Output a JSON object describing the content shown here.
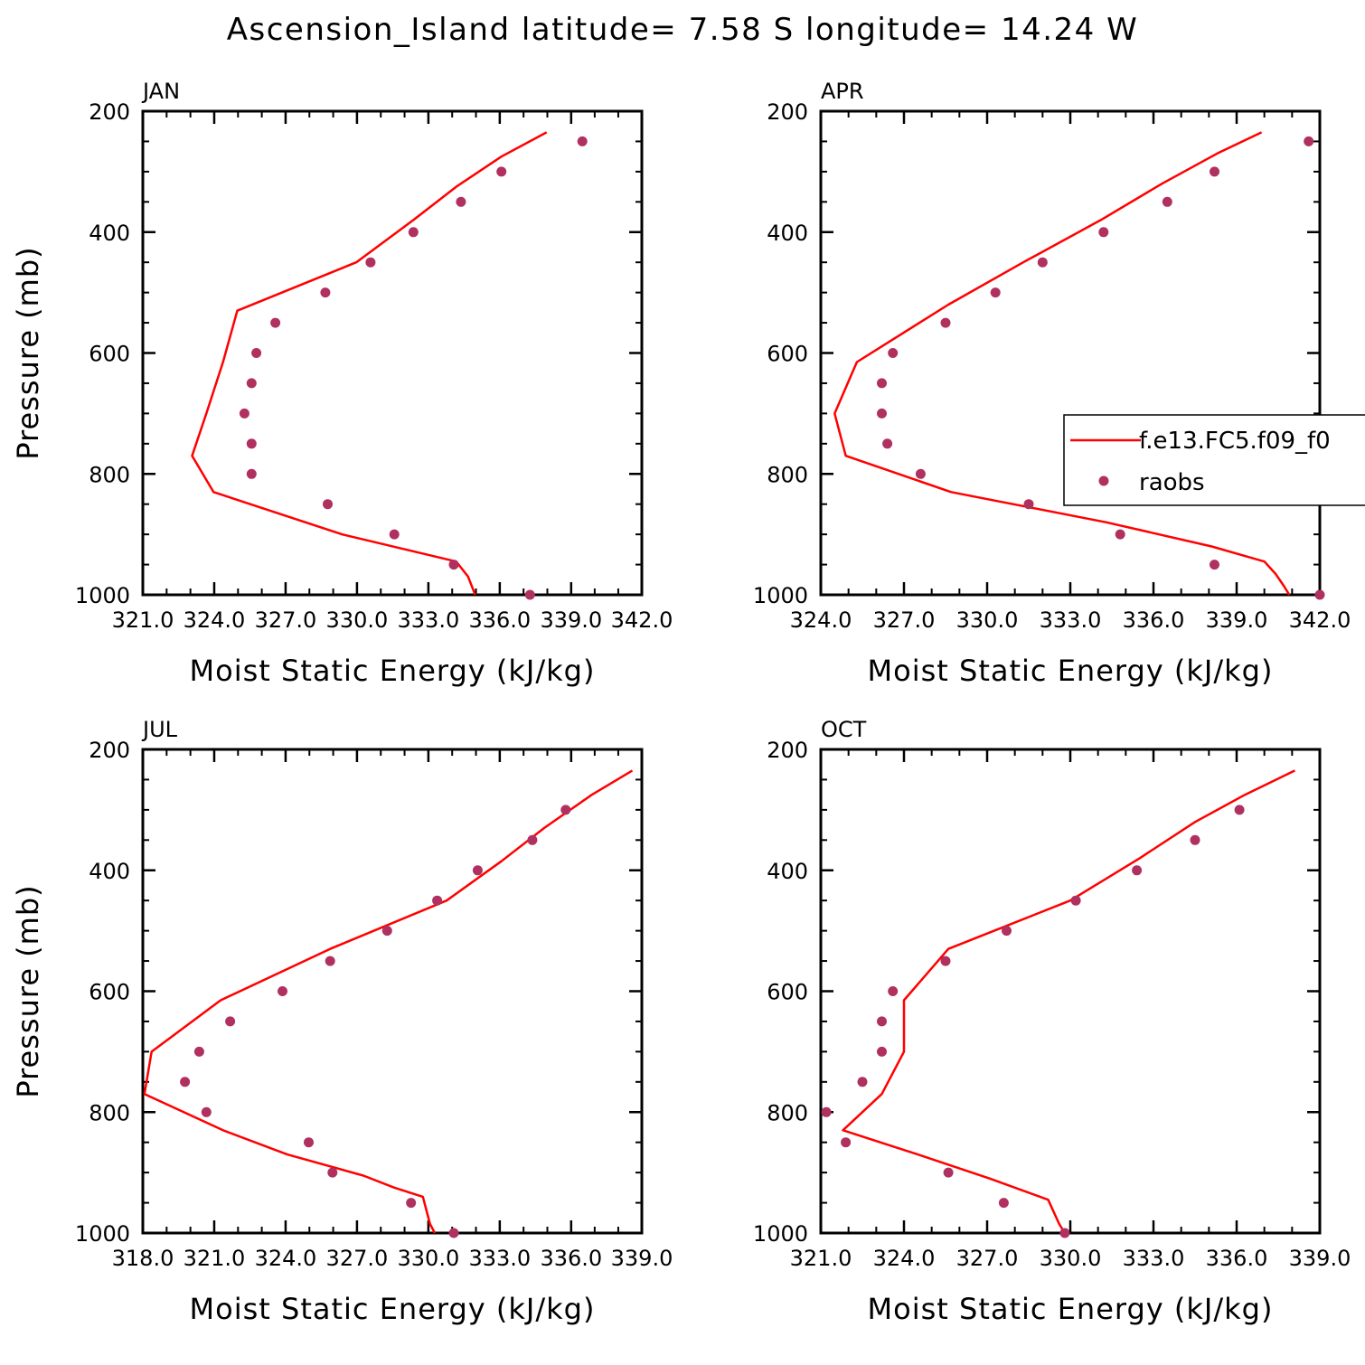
{
  "title": "Ascension_Island  latitude= 7.58 S longitude= 14.24 W",
  "legend": {
    "model_label": "f.e13.FC5.f09_f0",
    "obs_label": "raobs",
    "model_color": "#ff0000",
    "obs_color": "#b03060"
  },
  "chart_data": [
    {
      "type": "line",
      "panel": "JAN",
      "xlabel": "Moist Static Energy (kJ/kg)",
      "ylabel": "Pressure (mb)",
      "xlim": [
        321.03,
        342.0
      ],
      "ylim": [
        1000,
        200
      ],
      "x_ticks": [
        321.03,
        324.03,
        327.03,
        330.03,
        333.03,
        336.03,
        339.03,
        342.0
      ],
      "x_tick_labels": [
        "321.0",
        "324.0",
        "327.0",
        "330.0",
        "333.0",
        "336.0",
        "339.0",
        "342.0"
      ],
      "y_ticks": [
        200,
        400,
        600,
        800,
        1000
      ],
      "y_tick_labels": [
        "200",
        "400",
        "600",
        "800",
        "1000"
      ],
      "model": {
        "pressure": [
          235,
          275,
          325,
          380,
          450,
          530,
          615,
          700,
          770,
          830,
          900,
          945,
          970,
          1000
        ],
        "mse": [
          338.0,
          336.1,
          334.2,
          332.4,
          330.0,
          325.0,
          324.4,
          323.7,
          323.1,
          324.0,
          329.4,
          334.2,
          334.7,
          335.0
        ]
      },
      "raobs": {
        "pressure": [
          250,
          300,
          350,
          400,
          450,
          500,
          550,
          600,
          650,
          700,
          750,
          800,
          850,
          900,
          950,
          1000
        ],
        "mse": [
          339.5,
          336.1,
          334.4,
          332.4,
          330.6,
          328.7,
          326.6,
          325.8,
          325.6,
          325.3,
          325.6,
          325.6,
          328.8,
          331.6,
          334.1,
          337.3
        ]
      }
    },
    {
      "type": "line",
      "panel": "APR",
      "xlabel": "Moist Static Energy (kJ/kg)",
      "ylabel": "",
      "xlim": [
        324.0,
        342.0
      ],
      "ylim": [
        1000,
        200
      ],
      "x_ticks": [
        324.0,
        327.0,
        330.0,
        333.0,
        336.0,
        339.0,
        342.0
      ],
      "x_tick_labels": [
        "324.0",
        "327.0",
        "330.0",
        "333.0",
        "336.0",
        "339.0",
        "342.0"
      ],
      "y_ticks": [
        200,
        400,
        600,
        800,
        1000
      ],
      "y_tick_labels": [
        "200",
        "400",
        "600",
        "800",
        "1000"
      ],
      "model": {
        "pressure": [
          235,
          270,
          320,
          380,
          450,
          520,
          615,
          700,
          770,
          830,
          880,
          920,
          945,
          965,
          985,
          1000
        ],
        "mse": [
          339.9,
          338.3,
          336.3,
          334.1,
          331.3,
          328.6,
          325.3,
          324.5,
          324.9,
          328.7,
          334.3,
          338.1,
          340.0,
          340.4,
          340.7,
          340.9
        ]
      },
      "raobs": {
        "pressure": [
          250,
          300,
          350,
          400,
          450,
          500,
          550,
          600,
          650,
          700,
          750,
          800,
          850,
          900,
          950,
          1000
        ],
        "mse": [
          341.6,
          338.2,
          336.5,
          334.2,
          332.0,
          330.3,
          328.5,
          326.6,
          326.2,
          326.2,
          326.4,
          327.6,
          331.5,
          334.8,
          338.2,
          342.0
        ]
      }
    },
    {
      "type": "line",
      "panel": "JUL",
      "xlabel": "Moist Static Energy (kJ/kg)",
      "ylabel": "Pressure (mb)",
      "xlim": [
        318.03,
        339.0
      ],
      "ylim": [
        1000,
        200
      ],
      "x_ticks": [
        318.03,
        321.03,
        324.03,
        327.03,
        330.03,
        333.03,
        336.03,
        339.0
      ],
      "x_tick_labels": [
        "318.0",
        "321.0",
        "324.0",
        "327.0",
        "330.0",
        "333.0",
        "336.0",
        "339.0"
      ],
      "y_ticks": [
        200,
        400,
        600,
        800,
        1000
      ],
      "y_tick_labels": [
        "200",
        "400",
        "600",
        "800",
        "1000"
      ],
      "model": {
        "pressure": [
          235,
          275,
          330,
          385,
          450,
          530,
          615,
          700,
          770,
          830,
          870,
          905,
          925,
          940,
          985,
          1000
        ],
        "mse": [
          338.6,
          336.9,
          334.9,
          333.1,
          330.8,
          325.9,
          321.3,
          318.4,
          318.1,
          321.4,
          324.1,
          327.3,
          328.6,
          329.8,
          330.1,
          330.3
        ]
      },
      "raobs": {
        "pressure": [
          300,
          350,
          400,
          450,
          500,
          550,
          600,
          650,
          700,
          750,
          800,
          850,
          900,
          950,
          1000
        ],
        "mse": [
          335.8,
          334.4,
          332.1,
          330.4,
          328.3,
          325.9,
          323.9,
          321.7,
          320.4,
          319.8,
          320.7,
          325.0,
          326.0,
          329.3,
          331.1
        ]
      }
    },
    {
      "type": "line",
      "panel": "OCT",
      "xlabel": "Moist Static Energy (kJ/kg)",
      "ylabel": "",
      "xlim": [
        321.0,
        339.0
      ],
      "ylim": [
        1000,
        200
      ],
      "x_ticks": [
        321.0,
        324.0,
        327.0,
        330.0,
        333.0,
        336.0,
        339.0
      ],
      "x_tick_labels": [
        "321.0",
        "324.0",
        "327.0",
        "330.0",
        "333.0",
        "336.0",
        "339.0"
      ],
      "y_ticks": [
        200,
        400,
        600,
        800,
        1000
      ],
      "y_tick_labels": [
        "200",
        "400",
        "600",
        "800",
        "1000"
      ],
      "model": {
        "pressure": [
          235,
          275,
          320,
          380,
          450,
          530,
          615,
          700,
          770,
          830,
          870,
          910,
          945,
          985,
          1000
        ],
        "mse": [
          338.1,
          336.3,
          334.5,
          332.5,
          330.0,
          325.6,
          324.0,
          324.0,
          323.2,
          321.8,
          324.5,
          327.1,
          329.2,
          329.6,
          329.8
        ]
      },
      "raobs": {
        "pressure": [
          300,
          350,
          400,
          450,
          500,
          550,
          600,
          650,
          700,
          750,
          800,
          850,
          900,
          950,
          1000
        ],
        "mse": [
          336.1,
          334.5,
          332.4,
          330.2,
          327.7,
          325.5,
          323.6,
          323.2,
          323.2,
          322.5,
          321.2,
          321.9,
          325.6,
          327.6,
          329.8
        ]
      }
    }
  ]
}
